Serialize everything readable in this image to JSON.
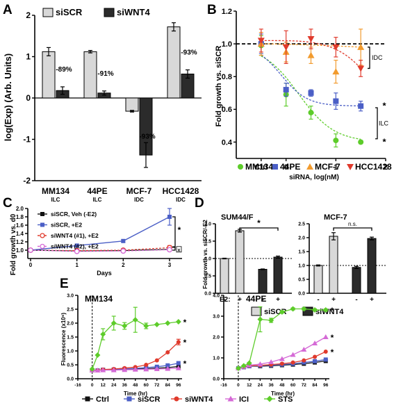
{
  "colors": {
    "light": "#d8d8d8",
    "dark": "#2b2b2b",
    "red_annot": "#e8211b",
    "green": "#5dcc2a",
    "blue": "#4b5fc6",
    "orange": "#f29b2e",
    "red": "#e03a2c",
    "pink": "#d56ad6",
    "black": "#111111"
  },
  "chart_data": [
    {
      "panel": "A",
      "type": "bar",
      "ylabel": "log(Exp) (Arb. Units)",
      "ylim": [
        -2,
        2
      ],
      "yticks": [
        "-2",
        "-1",
        "0",
        "1",
        "2"
      ],
      "categories": [
        "MM134",
        "44PE",
        "MCF-7",
        "HCC1428"
      ],
      "subcategories": [
        "ILC",
        "ILC",
        "IDC",
        "IDC"
      ],
      "series": [
        {
          "name": "siSCR",
          "values": [
            1.12,
            1.12,
            -0.32,
            1.72
          ],
          "errors": [
            0.1,
            0.03,
            0.02,
            0.1
          ]
        },
        {
          "name": "siWNT4",
          "values": [
            0.18,
            0.12,
            -1.38,
            0.58
          ],
          "errors": [
            0.09,
            0.05,
            0.3,
            0.1
          ]
        }
      ],
      "annotations": [
        "-89%",
        "-91%",
        "-93%",
        "-93%"
      ]
    },
    {
      "panel": "B",
      "type": "scatter",
      "xlabel": "siRNA, log(nM)",
      "ylabel": "Fold growth vs. siSCR",
      "xlim": [
        -1,
        2
      ],
      "ylim": [
        0.3,
        1.2
      ],
      "xticks": [
        "Ctrl",
        "0",
        "1",
        "2"
      ],
      "yticks": [
        "0.4",
        "0.6",
        "0.8",
        "1.0",
        "1.2"
      ],
      "reference_line": 1.0,
      "series": [
        {
          "name": "MM134",
          "x": [
            -0.5,
            0,
            0.5,
            1,
            1.5
          ],
          "y": [
            0.99,
            0.69,
            0.58,
            0.41,
            0.4
          ],
          "errors": [
            0.06,
            0.07,
            0.04,
            0.04,
            0.01
          ],
          "significant": true
        },
        {
          "name": "44PE",
          "x": [
            -0.5,
            0,
            0.5,
            1,
            1.5
          ],
          "y": [
            1.0,
            0.72,
            0.7,
            0.65,
            0.62
          ],
          "errors": [
            0.06,
            0.04,
            0.02,
            0.05,
            0.03
          ],
          "significant": true
        },
        {
          "name": "MCF-7",
          "x": [
            -0.5,
            0,
            0.5,
            1,
            1.5
          ],
          "y": [
            1.0,
            0.95,
            0.93,
            0.83,
            0.98
          ],
          "errors": [
            0.07,
            0.06,
            0.05,
            0.07,
            0.11
          ],
          "significant": false
        },
        {
          "name": "HCC1428",
          "x": [
            -0.5,
            0,
            0.5,
            1,
            1.5
          ],
          "y": [
            1.02,
            0.98,
            1.03,
            0.98,
            0.85
          ],
          "errors": [
            0.07,
            0.1,
            0.06,
            0.06,
            0.05
          ],
          "significant": false
        }
      ],
      "bracket_labels": [
        "IDC",
        "ILC"
      ],
      "star": "*",
      "legend_placement": "bottom"
    },
    {
      "panel": "C",
      "type": "line",
      "xlabel": "Days",
      "ylabel": "Fold growth vs. d0",
      "xlim": [
        0,
        3
      ],
      "ylim": [
        0.8,
        2.0
      ],
      "xticks": [
        "0",
        "1",
        "2",
        "3"
      ],
      "yticks": [
        "1.0",
        "1.2",
        "1.4",
        "1.6",
        "1.8",
        "2.0"
      ],
      "x": [
        0,
        1,
        2,
        3
      ],
      "series": [
        {
          "name": "siSCR, Veh (-E2)",
          "y": [
            1.0,
            0.98,
            0.99,
            1.02
          ],
          "errors": [
            0.02,
            0.02,
            0.02,
            0.03
          ]
        },
        {
          "name": "siSCR, +E2",
          "y": [
            1.0,
            1.11,
            1.22,
            1.8
          ],
          "errors": [
            0.02,
            0.03,
            0.03,
            0.2
          ]
        },
        {
          "name": "siWNT4 (#1), +E2",
          "y": [
            1.0,
            0.99,
            1.0,
            1.06
          ],
          "errors": [
            0.02,
            0.04,
            0.02,
            0.05
          ]
        },
        {
          "name": "siWNT4 (#2), +E2",
          "y": [
            1.0,
            0.97,
            0.98,
            1.01
          ],
          "errors": [
            0.02,
            0.02,
            0.02,
            0.03
          ]
        }
      ],
      "significance": [
        "*",
        "x"
      ],
      "legend_placement": "top-left"
    },
    {
      "panel": "D",
      "type": "bar",
      "ylabel": "Fold growth vs. siSCR/-E2",
      "xlabel": "E2:",
      "e2": [
        "-",
        "+",
        "-",
        "+"
      ],
      "legend": [
        "siSCR",
        "siWNT4"
      ],
      "reference_line": 1.0,
      "subpanels": [
        {
          "title": "SUM44/F",
          "ylim": [
            0,
            2.0
          ],
          "yticks": [
            "0.0",
            "0.5",
            "1.0",
            "1.5",
            "2.0"
          ],
          "values": [
            1.0,
            1.8,
            0.69,
            1.04
          ],
          "errors": [
            0.01,
            0.04,
            0.01,
            0.03
          ],
          "significance": "*"
        },
        {
          "title": "MCF-7",
          "ylim": [
            0,
            2.5
          ],
          "yticks": [
            "0.0",
            "0.5",
            "1.0",
            "1.5",
            "2.0",
            "2.5"
          ],
          "values": [
            1.0,
            2.05,
            0.93,
            1.97
          ],
          "errors": [
            0.02,
            0.13,
            0.04,
            0.05
          ],
          "significance": "n.s."
        }
      ]
    },
    {
      "panel": "E",
      "type": "line",
      "xlabel": "Time (hr)",
      "ylabel": "Fluorescence (x10⁶)",
      "xlim": [
        -16,
        100
      ],
      "xticks": [
        "-16",
        "0",
        "12",
        "24",
        "36",
        "48",
        "60",
        "72",
        "84",
        "96"
      ],
      "treatment_line_x": 0,
      "legend": [
        "Ctrl",
        "siSCR",
        "siWNT4",
        "ICI",
        "STS"
      ],
      "legend_placement": "bottom",
      "subpanels": [
        {
          "title": "MM134",
          "ylim": [
            0,
            3.0
          ],
          "yticks": [
            "0.0",
            "0.5",
            "1.0",
            "1.5",
            "2.0",
            "2.5",
            "3.0"
          ],
          "series": [
            {
              "name": "Ctrl",
              "x": [
                0,
                6,
                12,
                24,
                36,
                48,
                60,
                72,
                84,
                96
              ],
              "y": [
                0.3,
                0.3,
                0.32,
                0.32,
                0.34,
                0.35,
                0.36,
                0.38,
                0.4,
                0.44
              ]
            },
            {
              "name": "siSCR",
              "x": [
                0,
                6,
                12,
                24,
                36,
                48,
                60,
                72,
                84,
                96
              ],
              "y": [
                0.3,
                0.3,
                0.32,
                0.33,
                0.35,
                0.37,
                0.4,
                0.43,
                0.48,
                0.56
              ]
            },
            {
              "name": "siWNT4",
              "x": [
                0,
                6,
                12,
                24,
                36,
                48,
                60,
                72,
                84,
                96
              ],
              "y": [
                0.3,
                0.3,
                0.33,
                0.35,
                0.38,
                0.42,
                0.5,
                0.66,
                0.95,
                1.32
              ],
              "errors": [
                0,
                0,
                0,
                0,
                0,
                0,
                0,
                0,
                0,
                0.1
              ]
            },
            {
              "name": "ICI",
              "x": [
                0,
                6,
                12,
                24,
                36,
                48,
                60,
                72,
                84,
                96
              ],
              "y": [
                0.3,
                0.3,
                0.31,
                0.31,
                0.32,
                0.33,
                0.34,
                0.35,
                0.36,
                0.38
              ]
            },
            {
              "name": "STS",
              "x": [
                0,
                6,
                12,
                24,
                36,
                48,
                60,
                72,
                84,
                96
              ],
              "y": [
                0.35,
                0.85,
                1.6,
                2.0,
                1.9,
                2.12,
                1.9,
                1.95,
                2.0,
                2.05
              ],
              "errors": [
                0,
                0,
                0.2,
                0.25,
                0.12,
                0.45,
                0.1,
                0,
                0,
                0
              ]
            }
          ],
          "stars": [
            "*",
            "*",
            "*"
          ]
        },
        {
          "title": "44PE",
          "ylim": [
            0,
            4.0
          ],
          "yticks": [
            "0.0",
            "1.0",
            "2.0",
            "3.0",
            "4.0"
          ],
          "series": [
            {
              "name": "Ctrl",
              "x": [
                0,
                6,
                12,
                24,
                36,
                48,
                60,
                72,
                84,
                96
              ],
              "y": [
                0.5,
                0.55,
                0.6,
                0.6,
                0.62,
                0.65,
                0.68,
                0.72,
                0.78,
                0.85
              ]
            },
            {
              "name": "siSCR",
              "x": [
                0,
                6,
                12,
                24,
                36,
                48,
                60,
                72,
                84,
                96
              ],
              "y": [
                0.5,
                0.55,
                0.6,
                0.62,
                0.65,
                0.68,
                0.72,
                0.78,
                0.84,
                0.92
              ]
            },
            {
              "name": "siWNT4",
              "x": [
                0,
                6,
                12,
                24,
                36,
                48,
                60,
                72,
                84,
                96
              ],
              "y": [
                0.5,
                0.56,
                0.62,
                0.64,
                0.68,
                0.72,
                0.78,
                0.88,
                1.05,
                1.3
              ]
            },
            {
              "name": "ICI",
              "x": [
                0,
                6,
                12,
                24,
                36,
                48,
                60,
                72,
                84,
                96
              ],
              "y": [
                0.5,
                0.58,
                0.65,
                0.7,
                0.8,
                0.95,
                1.15,
                1.4,
                1.7,
                2.0
              ]
            },
            {
              "name": "STS",
              "x": [
                0,
                6,
                12,
                24,
                36,
                48,
                60,
                72,
                84,
                96
              ],
              "y": [
                0.5,
                0.62,
                0.75,
                2.85,
                2.8,
                3.2,
                3.35,
                3.35,
                3.3,
                3.3
              ],
              "errors": [
                0,
                0,
                0,
                0.6,
                0.1,
                0.05,
                0.05,
                0.05,
                0.05,
                0.05
              ]
            }
          ],
          "stars": [
            "*",
            "*",
            "*"
          ]
        }
      ]
    }
  ],
  "panel_letters": [
    "A",
    "B",
    "C",
    "D",
    "E"
  ]
}
